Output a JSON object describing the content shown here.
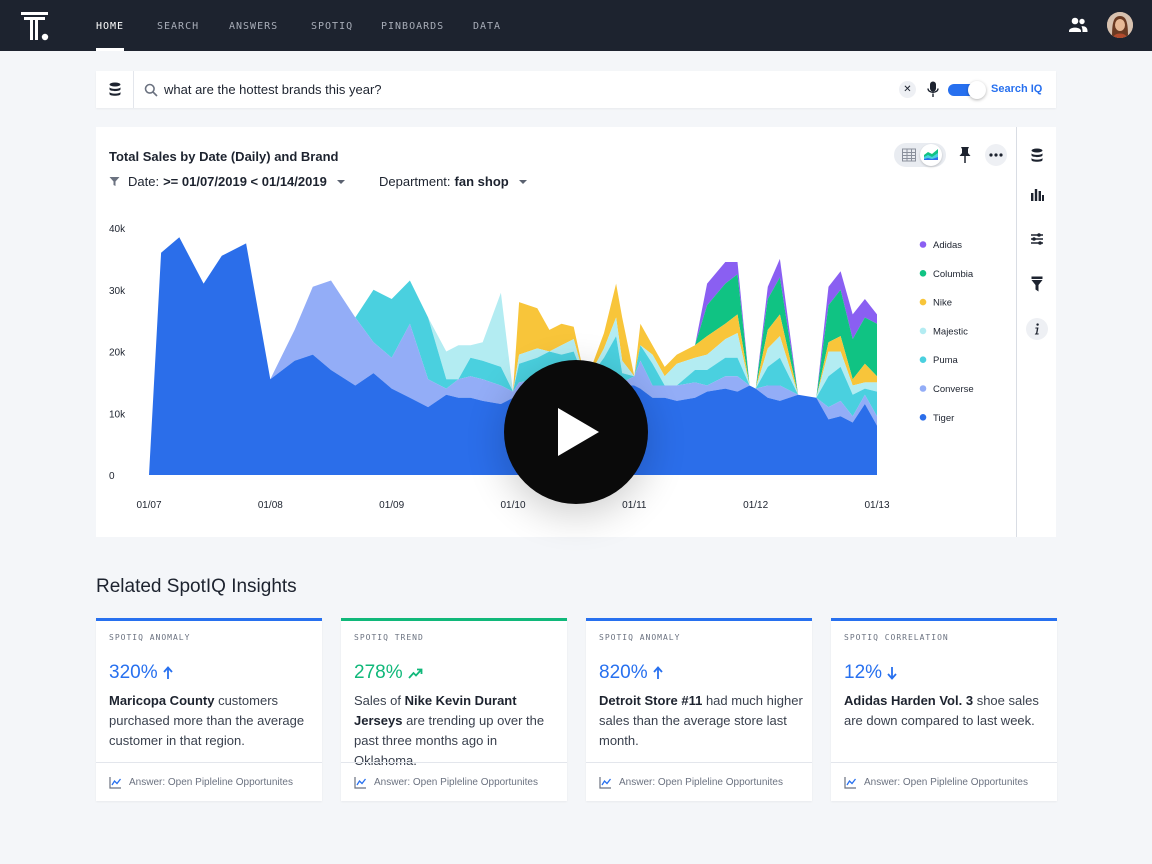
{
  "nav": {
    "items": [
      {
        "label": "HOME",
        "active": true
      },
      {
        "label": "SEARCH",
        "active": false
      },
      {
        "label": "ANSWERS",
        "active": false
      },
      {
        "label": "SPOTIQ",
        "active": false
      },
      {
        "label": "PINBOARDS",
        "active": false
      },
      {
        "label": "DATA",
        "active": false
      }
    ]
  },
  "search": {
    "query": "what are the hottest brands this year?",
    "searchiq_label": "Search IQ",
    "searchiq_enabled": true
  },
  "chart_card": {
    "title": "Total Sales by Date (Daily) and Brand",
    "filters": [
      {
        "label": "Date:",
        "value": ">= 01/07/2019 < 01/14/2019"
      },
      {
        "label": "Department:",
        "value": "fan shop"
      }
    ]
  },
  "chart_data": {
    "type": "area",
    "stacked": true,
    "title": "Total Sales by Date (Daily) and Brand",
    "xlabel": "",
    "ylabel": "",
    "ylim": [
      0,
      40000
    ],
    "yticks": [
      "0",
      "10k",
      "20k",
      "30k",
      "40k"
    ],
    "xticks": [
      "01/07",
      "01/08",
      "01/09",
      "01/10",
      "01/11",
      "01/12",
      "01/13"
    ],
    "legend_position": "right",
    "x": [
      0.0,
      0.1,
      0.25,
      0.45,
      0.6,
      0.8,
      1.0,
      1.2,
      1.35,
      1.5,
      1.7,
      1.85,
      2.0,
      2.15,
      2.3,
      2.45,
      2.55,
      2.65,
      2.75,
      2.9,
      3.0,
      3.05,
      3.2,
      3.3,
      3.4,
      3.5,
      3.6,
      3.75,
      3.85,
      3.9,
      4.0,
      4.05,
      4.15,
      4.25,
      4.35,
      4.5,
      4.6,
      4.75,
      4.85,
      4.95,
      5.0,
      5.1,
      5.2,
      5.35,
      5.5,
      5.6,
      5.7,
      5.8,
      5.9,
      6.0
    ],
    "series": [
      {
        "name": "Tiger",
        "color": "#2b6eea",
        "values": [
          0,
          36000,
          38500,
          31000,
          35500,
          37500,
          15500,
          18500,
          19500,
          17000,
          14500,
          16500,
          14000,
          12500,
          11000,
          13000,
          12500,
          12500,
          12000,
          11500,
          12500,
          13000,
          13500,
          14000,
          12000,
          13500,
          14000,
          12500,
          13500,
          14500,
          14500,
          14000,
          12500,
          12500,
          12000,
          12500,
          13500,
          14000,
          13500,
          14500,
          14000,
          12500,
          12000,
          13000,
          12500,
          9000,
          9500,
          8500,
          11500,
          8000
        ]
      },
      {
        "name": "Converse",
        "color": "#93adf7",
        "values": [
          0,
          0,
          0,
          0,
          0,
          0,
          0,
          5000,
          11000,
          14500,
          11000,
          5000,
          5000,
          12000,
          4500,
          1000,
          3000,
          3500,
          3500,
          3000,
          1000,
          2000,
          2000,
          2000,
          1500,
          1500,
          1000,
          1500,
          2500,
          500,
          1500,
          4500,
          2000,
          2000,
          2500,
          2500,
          1000,
          2000,
          2500,
          0,
          0,
          2000,
          2500,
          0,
          0,
          2000,
          2500,
          1000,
          1500,
          1500
        ]
      },
      {
        "name": "Puma",
        "color": "#4ad0df",
        "values": [
          0,
          0,
          0,
          0,
          0,
          0,
          0,
          0,
          0,
          0,
          0,
          8500,
          9500,
          7000,
          10000,
          1500,
          0,
          3000,
          3000,
          3000,
          0,
          3000,
          3500,
          4000,
          6000,
          5000,
          0,
          5000,
          6500,
          1500,
          0,
          2500,
          3500,
          0,
          0,
          2000,
          2500,
          3000,
          3000,
          0,
          0,
          3000,
          4500,
          0,
          0,
          5000,
          5500,
          3500,
          1000,
          4000
        ]
      },
      {
        "name": "Majestic",
        "color": "#b3ecf2",
        "values": [
          0,
          0,
          0,
          0,
          0,
          0,
          0,
          0,
          0,
          0,
          0,
          0,
          0,
          0,
          0,
          4500,
          5500,
          2000,
          3000,
          12000,
          0,
          1500,
          1500,
          0,
          1500,
          2000,
          0,
          1500,
          3000,
          2000,
          0,
          0,
          1500,
          1500,
          3500,
          2000,
          2500,
          3000,
          4000,
          0,
          0,
          3000,
          3500,
          0,
          0,
          4000,
          2500,
          1500,
          1000,
          1500
        ]
      },
      {
        "name": "Nike",
        "color": "#f8c53a",
        "values": [
          0,
          0,
          0,
          0,
          0,
          0,
          0,
          0,
          0,
          0,
          0,
          0,
          0,
          0,
          0,
          0,
          0,
          0,
          0,
          0,
          0,
          8500,
          6500,
          3500,
          3500,
          2000,
          0,
          2500,
          5500,
          7000,
          0,
          3500,
          1500,
          1500,
          1500,
          2000,
          3000,
          2500,
          3000,
          0,
          0,
          3000,
          3500,
          0,
          0,
          1500,
          2500,
          1000,
          3000,
          1000
        ]
      },
      {
        "name": "Columbia",
        "color": "#10c383",
        "values": [
          0,
          0,
          0,
          0,
          0,
          0,
          0,
          0,
          0,
          0,
          0,
          0,
          0,
          0,
          0,
          0,
          0,
          0,
          0,
          0,
          0,
          0,
          0,
          0,
          0,
          0,
          0,
          0,
          0,
          0,
          0,
          0,
          0,
          0,
          0,
          0,
          5000,
          6500,
          6500,
          0,
          0,
          5000,
          6000,
          0,
          0,
          6000,
          7500,
          6500,
          7500,
          8500
        ]
      },
      {
        "name": "Adidas",
        "color": "#8a5ff2",
        "values": [
          0,
          0,
          0,
          0,
          0,
          0,
          0,
          0,
          0,
          0,
          0,
          0,
          0,
          0,
          0,
          0,
          0,
          0,
          0,
          0,
          0,
          0,
          0,
          0,
          0,
          0,
          0,
          0,
          0,
          0,
          0,
          0,
          0,
          0,
          0,
          0,
          3500,
          3500,
          2000,
          0,
          0,
          2000,
          3000,
          0,
          0,
          3000,
          3000,
          4000,
          3000,
          1500
        ]
      }
    ]
  },
  "insights_section": {
    "title": "Related SpotIQ Insights"
  },
  "insights": [
    {
      "type": "SPOTIQ ANOMALY",
      "metric": "320%",
      "trend": "up",
      "accent": "#2770ef",
      "text_bold": "Maricopa County",
      "text_pre": "",
      "text_post": " customers purchased more than the average customer in that region.",
      "footer": "Answer: Open Pipleline Opportunites"
    },
    {
      "type": "SPOTIQ TREND",
      "metric": "278%",
      "trend": "trending",
      "accent": "#10b87a",
      "text_bold": "Nike Kevin Durant Jerseys",
      "text_pre": "Sales of ",
      "text_post": " are trending up over the past three months ago in Oklahoma.",
      "footer": "Answer: Open Pipleline Opportunites"
    },
    {
      "type": "SPOTIQ ANOMALY",
      "metric": "820%",
      "trend": "up",
      "accent": "#2770ef",
      "text_bold": "Detroit Store #11",
      "text_pre": "",
      "text_post": " had much higher sales than the average store last month.",
      "footer": "Answer: Open Pipleline Opportunites"
    },
    {
      "type": "SPOTIQ CORRELATION",
      "metric": "12%",
      "trend": "down",
      "accent": "#2770ef",
      "text_bold": "Adidas Harden Vol. 3",
      "text_pre": "",
      "text_post": " shoe sales are down compared to last week.",
      "footer": "Answer: Open Pipleline Opportunites"
    }
  ]
}
